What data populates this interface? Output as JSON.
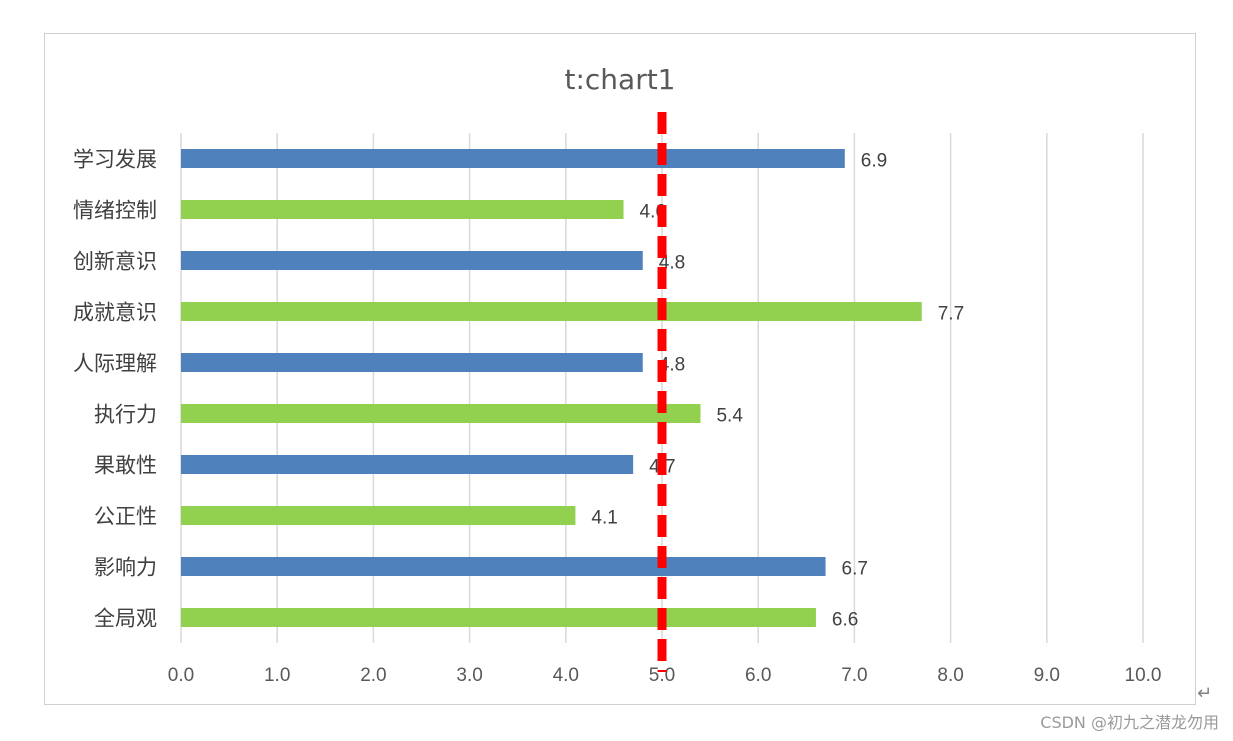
{
  "chart_data": {
    "type": "bar",
    "orientation": "horizontal",
    "title": "t:chart1",
    "categories": [
      "学习发展",
      "情绪控制",
      "创新意识",
      "成就意识",
      "人际理解",
      "执行力",
      "果敢性",
      "公正性",
      "影响力",
      "全局观"
    ],
    "values": [
      6.9,
      4.6,
      4.8,
      7.7,
      4.8,
      5.4,
      4.7,
      4.1,
      6.7,
      6.6
    ],
    "value_labels": [
      "6.9",
      "4.6",
      "4.8",
      "7.7",
      "4.8",
      "5.4",
      "4.7",
      "4.1",
      "6.7",
      "6.6"
    ],
    "bar_colors": [
      "#4f81bd",
      "#92d050",
      "#4f81bd",
      "#92d050",
      "#4f81bd",
      "#92d050",
      "#4f81bd",
      "#92d050",
      "#4f81bd",
      "#92d050"
    ],
    "xlim": [
      0,
      10
    ],
    "xticks": [
      "0.0",
      "1.0",
      "2.0",
      "3.0",
      "4.0",
      "5.0",
      "6.0",
      "7.0",
      "8.0",
      "9.0",
      "10.0"
    ],
    "grid": "vertical",
    "reference_line": {
      "value": 5.0,
      "style": "dashed",
      "color": "#ff0000"
    },
    "xlabel": "",
    "ylabel": ""
  },
  "watermark": "CSDN @初九之潜龙勿用",
  "return_glyph": "↵"
}
